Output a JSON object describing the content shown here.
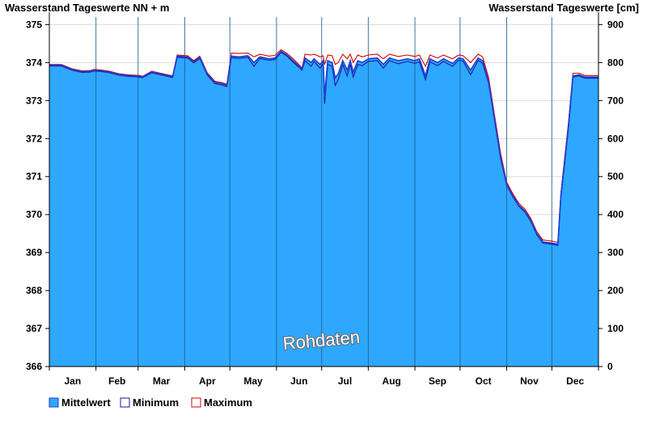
{
  "chart_data": {
    "type": "area",
    "left_axis_title": "Wasserstand Tageswerte NN + m",
    "right_axis_title": "Wasserstand Tageswerte [cm]",
    "watermark": "Rohdaten",
    "y_left": {
      "ylim": [
        366,
        375.2
      ],
      "ticks": [
        366,
        367,
        368,
        369,
        370,
        371,
        372,
        373,
        374,
        375
      ]
    },
    "y_right": {
      "ylim": [
        0,
        920
      ],
      "ticks": [
        0,
        100,
        200,
        300,
        400,
        500,
        600,
        700,
        800,
        900
      ]
    },
    "months": [
      "Jan",
      "Feb",
      "Mar",
      "Apr",
      "May",
      "Jun",
      "Jul",
      "Aug",
      "Sep",
      "Oct",
      "Nov",
      "Dec"
    ],
    "x_domain": [
      0,
      365
    ],
    "month_boundaries": [
      0,
      31,
      59,
      90,
      120,
      151,
      181,
      212,
      243,
      273,
      304,
      334,
      365
    ],
    "grid": {
      "horizontal": true,
      "vertical_month_lines": true
    },
    "legend_position": "bottom-left",
    "colors": {
      "mean_fill": "#2ea7ff",
      "mean_line": "#1b3fd6",
      "minimum": "#1a1a99",
      "maximum": "#d80000"
    },
    "series": [
      {
        "name": "Mittelwert",
        "points": [
          [
            0,
            373.93
          ],
          [
            8,
            373.93
          ],
          [
            15,
            373.82
          ],
          [
            22,
            373.76
          ],
          [
            27,
            373.77
          ],
          [
            30,
            373.8
          ],
          [
            35,
            373.78
          ],
          [
            40,
            373.75
          ],
          [
            46,
            373.69
          ],
          [
            52,
            373.66
          ],
          [
            60,
            373.64
          ],
          [
            62,
            373.62
          ],
          [
            68,
            373.75
          ],
          [
            74,
            373.7
          ],
          [
            82,
            373.63
          ],
          [
            85,
            374.17
          ],
          [
            92,
            374.15
          ],
          [
            96,
            374.02
          ],
          [
            100,
            374.14
          ],
          [
            105,
            373.7
          ],
          [
            110,
            373.48
          ],
          [
            115,
            373.44
          ],
          [
            118,
            373.4
          ],
          [
            121,
            374.17
          ],
          [
            126,
            374.15
          ],
          [
            132,
            374.18
          ],
          [
            136,
            374.0
          ],
          [
            140,
            374.15
          ],
          [
            146,
            374.1
          ],
          [
            150,
            374.12
          ],
          [
            154,
            374.3
          ],
          [
            158,
            374.2
          ],
          [
            162,
            374.05
          ],
          [
            168,
            373.83
          ],
          [
            170,
            374.12
          ],
          [
            174,
            374.0
          ],
          [
            176,
            374.1
          ],
          [
            180,
            373.95
          ],
          [
            182,
            374.05
          ],
          [
            183,
            373.1
          ],
          [
            185,
            374.05
          ],
          [
            188,
            374.0
          ],
          [
            190,
            373.6
          ],
          [
            192,
            373.7
          ],
          [
            195,
            374.05
          ],
          [
            198,
            373.8
          ],
          [
            200,
            374.05
          ],
          [
            202,
            373.75
          ],
          [
            205,
            374.05
          ],
          [
            208,
            374.0
          ],
          [
            212,
            374.1
          ],
          [
            218,
            374.12
          ],
          [
            222,
            373.95
          ],
          [
            226,
            374.12
          ],
          [
            232,
            374.05
          ],
          [
            238,
            374.1
          ],
          [
            243,
            374.05
          ],
          [
            246,
            374.1
          ],
          [
            250,
            373.65
          ],
          [
            253,
            374.1
          ],
          [
            258,
            374.0
          ],
          [
            262,
            374.1
          ],
          [
            268,
            373.98
          ],
          [
            272,
            374.12
          ],
          [
            275,
            374.1
          ],
          [
            280,
            373.8
          ],
          [
            285,
            374.12
          ],
          [
            288,
            374.05
          ],
          [
            292,
            373.5
          ],
          [
            296,
            372.5
          ],
          [
            300,
            371.5
          ],
          [
            304,
            370.8
          ],
          [
            308,
            370.5
          ],
          [
            312,
            370.25
          ],
          [
            316,
            370.1
          ],
          [
            320,
            369.85
          ],
          [
            324,
            369.5
          ],
          [
            328,
            369.28
          ],
          [
            334,
            369.25
          ],
          [
            338,
            369.22
          ],
          [
            340,
            370.5
          ],
          [
            342,
            371.2
          ],
          [
            345,
            372.3
          ],
          [
            348,
            373.65
          ],
          [
            352,
            373.68
          ],
          [
            356,
            373.62
          ],
          [
            365,
            373.62
          ]
        ]
      },
      {
        "name": "Minimum",
        "points": [
          [
            0,
            373.91
          ],
          [
            8,
            373.91
          ],
          [
            15,
            373.8
          ],
          [
            22,
            373.74
          ],
          [
            27,
            373.75
          ],
          [
            30,
            373.78
          ],
          [
            35,
            373.76
          ],
          [
            40,
            373.73
          ],
          [
            46,
            373.67
          ],
          [
            52,
            373.64
          ],
          [
            60,
            373.62
          ],
          [
            62,
            373.6
          ],
          [
            68,
            373.73
          ],
          [
            74,
            373.68
          ],
          [
            82,
            373.61
          ],
          [
            85,
            374.14
          ],
          [
            92,
            374.12
          ],
          [
            96,
            373.99
          ],
          [
            100,
            374.11
          ],
          [
            105,
            373.67
          ],
          [
            110,
            373.45
          ],
          [
            115,
            373.41
          ],
          [
            118,
            373.37
          ],
          [
            121,
            374.13
          ],
          [
            126,
            374.11
          ],
          [
            132,
            374.14
          ],
          [
            136,
            373.9
          ],
          [
            140,
            374.11
          ],
          [
            146,
            374.06
          ],
          [
            150,
            374.08
          ],
          [
            154,
            374.27
          ],
          [
            158,
            374.17
          ],
          [
            162,
            374.01
          ],
          [
            168,
            373.8
          ],
          [
            170,
            374.05
          ],
          [
            174,
            373.9
          ],
          [
            176,
            374.03
          ],
          [
            180,
            373.85
          ],
          [
            182,
            373.98
          ],
          [
            183,
            372.92
          ],
          [
            185,
            373.95
          ],
          [
            188,
            373.9
          ],
          [
            190,
            373.4
          ],
          [
            192,
            373.55
          ],
          [
            195,
            373.95
          ],
          [
            198,
            373.65
          ],
          [
            200,
            373.95
          ],
          [
            202,
            373.62
          ],
          [
            205,
            373.95
          ],
          [
            208,
            373.92
          ],
          [
            212,
            374.03
          ],
          [
            218,
            374.05
          ],
          [
            222,
            373.85
          ],
          [
            226,
            374.05
          ],
          [
            232,
            373.97
          ],
          [
            238,
            374.03
          ],
          [
            243,
            373.98
          ],
          [
            246,
            374.02
          ],
          [
            250,
            373.55
          ],
          [
            253,
            374.02
          ],
          [
            258,
            373.92
          ],
          [
            262,
            374.03
          ],
          [
            268,
            373.9
          ],
          [
            272,
            374.06
          ],
          [
            275,
            374.04
          ],
          [
            280,
            373.68
          ],
          [
            285,
            374.06
          ],
          [
            288,
            373.98
          ],
          [
            292,
            373.45
          ],
          [
            296,
            372.45
          ],
          [
            300,
            371.45
          ],
          [
            304,
            370.77
          ],
          [
            308,
            370.47
          ],
          [
            312,
            370.22
          ],
          [
            316,
            370.07
          ],
          [
            320,
            369.82
          ],
          [
            324,
            369.47
          ],
          [
            328,
            369.25
          ],
          [
            334,
            369.22
          ],
          [
            338,
            369.19
          ],
          [
            340,
            370.45
          ],
          [
            342,
            371.15
          ],
          [
            345,
            372.25
          ],
          [
            348,
            373.62
          ],
          [
            352,
            373.65
          ],
          [
            356,
            373.59
          ],
          [
            365,
            373.59
          ]
        ]
      },
      {
        "name": "Maximum",
        "points": [
          [
            0,
            373.95
          ],
          [
            8,
            373.95
          ],
          [
            15,
            373.84
          ],
          [
            22,
            373.78
          ],
          [
            27,
            373.79
          ],
          [
            30,
            373.82
          ],
          [
            35,
            373.8
          ],
          [
            40,
            373.77
          ],
          [
            46,
            373.71
          ],
          [
            52,
            373.68
          ],
          [
            60,
            373.66
          ],
          [
            62,
            373.64
          ],
          [
            68,
            373.77
          ],
          [
            74,
            373.72
          ],
          [
            82,
            373.65
          ],
          [
            85,
            374.2
          ],
          [
            92,
            374.18
          ],
          [
            96,
            374.05
          ],
          [
            100,
            374.17
          ],
          [
            105,
            373.73
          ],
          [
            110,
            373.51
          ],
          [
            115,
            373.47
          ],
          [
            118,
            373.43
          ],
          [
            121,
            374.25
          ],
          [
            126,
            374.24
          ],
          [
            132,
            374.25
          ],
          [
            136,
            374.15
          ],
          [
            140,
            374.22
          ],
          [
            146,
            374.17
          ],
          [
            150,
            374.19
          ],
          [
            154,
            374.34
          ],
          [
            158,
            374.24
          ],
          [
            162,
            374.1
          ],
          [
            168,
            373.86
          ],
          [
            170,
            374.22
          ],
          [
            174,
            374.2
          ],
          [
            176,
            374.22
          ],
          [
            180,
            374.15
          ],
          [
            182,
            374.18
          ],
          [
            183,
            373.95
          ],
          [
            185,
            374.2
          ],
          [
            188,
            374.18
          ],
          [
            190,
            373.95
          ],
          [
            192,
            374.0
          ],
          [
            195,
            374.22
          ],
          [
            198,
            374.1
          ],
          [
            200,
            374.22
          ],
          [
            202,
            374.0
          ],
          [
            205,
            374.2
          ],
          [
            208,
            374.15
          ],
          [
            212,
            374.2
          ],
          [
            218,
            374.22
          ],
          [
            222,
            374.1
          ],
          [
            226,
            374.22
          ],
          [
            232,
            374.16
          ],
          [
            238,
            374.2
          ],
          [
            243,
            374.16
          ],
          [
            246,
            374.2
          ],
          [
            250,
            373.9
          ],
          [
            253,
            374.2
          ],
          [
            258,
            374.12
          ],
          [
            262,
            374.2
          ],
          [
            268,
            374.1
          ],
          [
            272,
            374.2
          ],
          [
            275,
            374.18
          ],
          [
            280,
            374.0
          ],
          [
            285,
            374.22
          ],
          [
            288,
            374.15
          ],
          [
            292,
            373.6
          ],
          [
            296,
            372.6
          ],
          [
            300,
            371.6
          ],
          [
            304,
            370.85
          ],
          [
            308,
            370.55
          ],
          [
            312,
            370.3
          ],
          [
            316,
            370.15
          ],
          [
            320,
            369.9
          ],
          [
            324,
            369.55
          ],
          [
            328,
            369.33
          ],
          [
            334,
            369.3
          ],
          [
            338,
            369.27
          ],
          [
            340,
            370.55
          ],
          [
            342,
            371.3
          ],
          [
            345,
            372.4
          ],
          [
            348,
            373.72
          ],
          [
            352,
            373.72
          ],
          [
            356,
            373.66
          ],
          [
            365,
            373.66
          ]
        ]
      }
    ]
  }
}
